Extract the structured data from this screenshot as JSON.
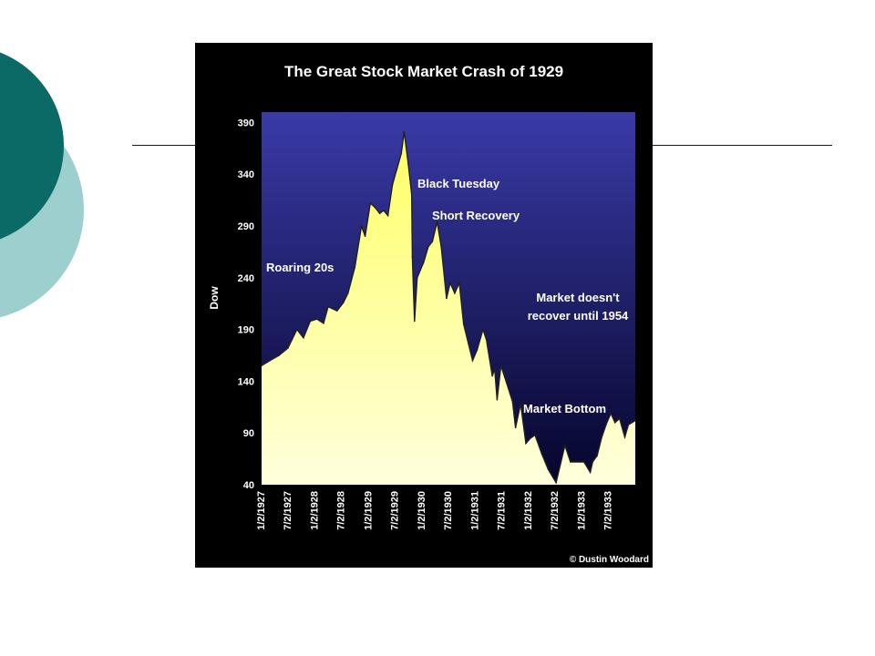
{
  "slide": {
    "decor_colors": {
      "outer_circle": "#9ccfce",
      "inner_circle": "#0c6a66",
      "rule": "#1a1a1a"
    }
  },
  "chart_data": {
    "type": "area",
    "title": "The Great Stock Market Crash of 1929",
    "xlabel": "",
    "ylabel": "Dow",
    "ylim": [
      40,
      400
    ],
    "yticks": [
      40,
      90,
      140,
      190,
      240,
      290,
      340,
      390
    ],
    "xlim": [
      "1927-01-02",
      "1934-01-01"
    ],
    "xticks": [
      "1/2/1927",
      "7/2/1927",
      "1/2/1928",
      "7/2/1928",
      "1/2/1929",
      "7/2/1929",
      "1/2/1930",
      "7/2/1930",
      "1/2/1931",
      "7/2/1931",
      "1/2/1932",
      "7/2/1932",
      "1/2/1933",
      "7/2/1933"
    ],
    "grid": false,
    "legend": "none",
    "colors": {
      "background": "#000000",
      "plot_top": "#3a3aa8",
      "plot_bottom": "#05052a",
      "area_top": "#ffff66",
      "area_bottom": "#ffffdd",
      "text": "#ffffff"
    },
    "series": [
      {
        "points": [
          [
            "1927-01-02",
            155
          ],
          [
            "1927-03-01",
            160
          ],
          [
            "1927-05-01",
            165
          ],
          [
            "1927-07-01",
            172
          ],
          [
            "1927-09-01",
            190
          ],
          [
            "1927-10-15",
            182
          ],
          [
            "1927-12-01",
            198
          ],
          [
            "1928-01-15",
            200
          ],
          [
            "1928-03-01",
            196
          ],
          [
            "1928-04-01",
            212
          ],
          [
            "1928-06-01",
            208
          ],
          [
            "1928-07-15",
            216
          ],
          [
            "1928-08-15",
            225
          ],
          [
            "1928-10-01",
            250
          ],
          [
            "1928-11-15",
            290
          ],
          [
            "1928-12-10",
            280
          ],
          [
            "1929-01-15",
            312
          ],
          [
            "1929-02-15",
            308
          ],
          [
            "1929-03-20",
            302
          ],
          [
            "1929-04-15",
            305
          ],
          [
            "1929-05-15",
            300
          ],
          [
            "1929-06-15",
            330
          ],
          [
            "1929-07-15",
            345
          ],
          [
            "1929-08-15",
            360
          ],
          [
            "1929-09-03",
            381
          ],
          [
            "1929-10-01",
            350
          ],
          [
            "1929-10-25",
            320
          ],
          [
            "1929-10-29",
            260
          ],
          [
            "1929-11-13",
            198
          ],
          [
            "1929-12-01",
            240
          ],
          [
            "1930-01-15",
            255
          ],
          [
            "1930-02-15",
            270
          ],
          [
            "1930-03-15",
            275
          ],
          [
            "1930-04-17",
            294
          ],
          [
            "1930-05-15",
            270
          ],
          [
            "1930-06-20",
            220
          ],
          [
            "1930-07-15",
            235
          ],
          [
            "1930-08-15",
            225
          ],
          [
            "1930-09-15",
            235
          ],
          [
            "1930-10-15",
            195
          ],
          [
            "1930-12-15",
            160
          ],
          [
            "1931-01-15",
            170
          ],
          [
            "1931-02-24",
            190
          ],
          [
            "1931-03-20",
            180
          ],
          [
            "1931-04-29",
            145
          ],
          [
            "1931-05-15",
            152
          ],
          [
            "1931-06-01",
            122
          ],
          [
            "1931-06-27",
            155
          ],
          [
            "1931-08-01",
            140
          ],
          [
            "1931-09-15",
            120
          ],
          [
            "1931-10-05",
            95
          ],
          [
            "1931-11-09",
            118
          ],
          [
            "1931-12-15",
            80
          ],
          [
            "1932-01-15",
            85
          ],
          [
            "1932-02-15",
            88
          ],
          [
            "1932-04-01",
            70
          ],
          [
            "1932-05-15",
            55
          ],
          [
            "1932-07-08",
            42
          ],
          [
            "1932-09-07",
            78
          ],
          [
            "1932-10-15",
            62
          ],
          [
            "1932-12-15",
            62
          ],
          [
            "1933-01-15",
            62
          ],
          [
            "1933-02-27",
            52
          ],
          [
            "1933-03-15",
            62
          ],
          [
            "1933-04-15",
            68
          ],
          [
            "1933-05-15",
            85
          ],
          [
            "1933-06-15",
            98
          ],
          [
            "1933-07-18",
            109
          ],
          [
            "1933-08-15",
            100
          ],
          [
            "1933-09-15",
            104
          ],
          [
            "1933-10-21",
            86
          ],
          [
            "1933-11-15",
            98
          ],
          [
            "1934-01-01",
            102
          ]
        ]
      }
    ],
    "annotations": [
      {
        "id": "roaring",
        "text": "Roaring 20s"
      },
      {
        "id": "black_tuesday",
        "text": "Black Tuesday"
      },
      {
        "id": "short_recovery",
        "text": "Short Recovery"
      },
      {
        "id": "no_recover_1",
        "text": "Market doesn't"
      },
      {
        "id": "no_recover_2",
        "text": "recover until 1954"
      },
      {
        "id": "bottom",
        "text": "Market Bottom"
      }
    ],
    "credit": "© Dustin Woodard"
  }
}
